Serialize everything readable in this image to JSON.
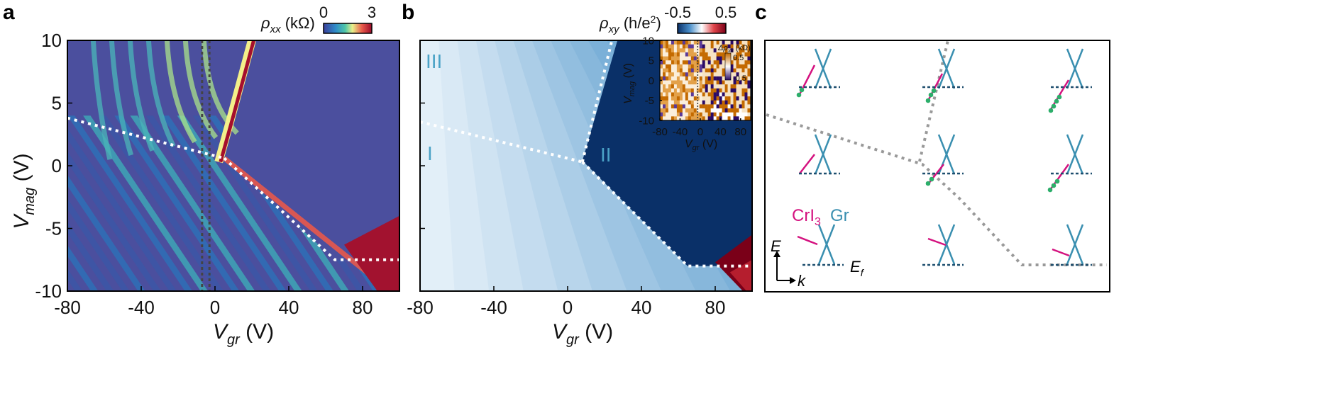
{
  "figure": {
    "panel_labels": [
      "a",
      "b",
      "c"
    ]
  },
  "chart_data": [
    {
      "type": "heatmap",
      "panel": "a",
      "title": "",
      "xlabel": "V",
      "xlabel_sub": "gr",
      "xlabel_unit": " (V)",
      "ylabel": "V",
      "ylabel_sub": "mag",
      "ylabel_unit": " (V)",
      "xlim": [
        -80,
        100
      ],
      "ylim": [
        -10,
        10
      ],
      "xticks": [
        -80,
        -40,
        0,
        40,
        80
      ],
      "yticks": [
        10,
        5,
        0,
        -5,
        -10
      ],
      "colorbar": {
        "label": "ρ",
        "label_sub": "xx",
        "unit": " (kΩ)",
        "min": 0,
        "max": 3,
        "min_label": "0",
        "max_label": "3"
      },
      "boundaries": [
        {
          "name": "III-I boundary",
          "points": [
            [
              -80,
              3.8
            ],
            [
              5,
              0.6
            ]
          ]
        },
        {
          "name": "III-II boundary",
          "points": [
            [
              5,
              0.6
            ],
            [
              22,
              10
            ]
          ]
        },
        {
          "name": "I-II boundary",
          "points": [
            [
              5,
              0.6
            ],
            [
              65,
              -7.5
            ],
            [
              100,
              -7.5
            ]
          ]
        }
      ],
      "cut_lines_x": [
        -7,
        -3
      ]
    },
    {
      "type": "heatmap",
      "panel": "b",
      "xlabel": "V",
      "xlabel_sub": "gr",
      "xlabel_unit": " (V)",
      "xlim": [
        -80,
        100
      ],
      "ylim": [
        -10,
        10
      ],
      "xticks": [
        -80,
        -40,
        0,
        40,
        80
      ],
      "colorbar": {
        "label": "ρ",
        "label_sub": "xy",
        "unit": " (h/e",
        "unit_sup": "2",
        "unit_end": ")",
        "min": -0.5,
        "max": 0.5,
        "min_label": "-0.5",
        "max_label": "0.5"
      },
      "regions": [
        "III",
        "I",
        "II"
      ],
      "inset": {
        "xlabel": "V",
        "xlabel_sub": "gr",
        "xlabel_unit": " (V)",
        "ylabel": "V",
        "ylabel_sub": "mag",
        "ylabel_unit": " (V)",
        "xticks": [
          -80,
          -40,
          0,
          40,
          80
        ],
        "yticks": [
          10,
          5,
          0,
          -5,
          -10
        ],
        "colorbar": {
          "label": "Δρ",
          "label_sub": "xx",
          "unit": " (kΩ)",
          "max_label": "0.5",
          "min_label": "-0.5"
        }
      }
    }
  ],
  "panel_c": {
    "legend_crI3": "CrI",
    "legend_crI3_sub": "3",
    "legend_gr": "Gr",
    "axis_e": "E",
    "axis_k": "k",
    "fermi_label": "E",
    "fermi_sub": "f",
    "colors": {
      "cri3": "#d4127f",
      "graphene": "#3a8fb0",
      "fill": "#f7d3ea",
      "fermi": "#1d4e6e",
      "electron": "#2cae6a"
    }
  }
}
